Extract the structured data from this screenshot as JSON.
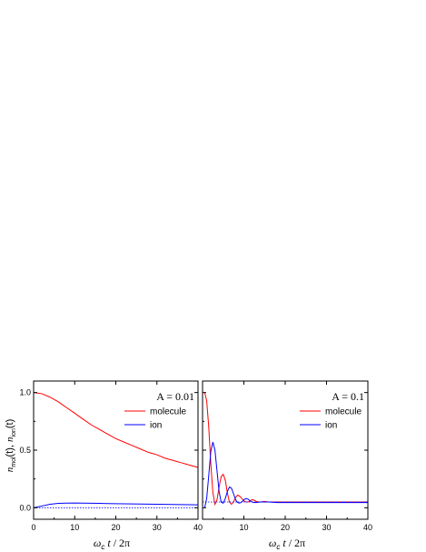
{
  "ylabel": {
    "n1": "n",
    "sub1": "mol",
    "mid": "(t), ",
    "n2": "n",
    "sub2": "ion",
    "end": "(t)"
  },
  "xlabel": {
    "omega": "ω",
    "sub": "c",
    "t": "t",
    "rest": " / 2π"
  },
  "chart_data": [
    {
      "type": "line",
      "annotation": "A = 0.01",
      "xlim": [
        0,
        40
      ],
      "ylim": [
        -0.1,
        1.1
      ],
      "x_ticks": [
        0,
        10,
        20,
        30,
        40
      ],
      "x_tick_labels": [
        "0",
        "10",
        "20",
        "30",
        "40"
      ],
      "y_ticks": [
        0.0,
        0.5,
        1.0
      ],
      "y_tick_labels": [
        "0.0",
        "0.5",
        "1.0"
      ],
      "legend_position": "top-right",
      "series": [
        {
          "name": "molecule",
          "color": "#ff0000",
          "x": [
            0,
            2,
            4,
            6,
            8,
            10,
            12,
            14,
            16,
            18,
            20,
            22,
            24,
            26,
            28,
            30,
            32,
            34,
            36,
            38,
            40
          ],
          "y": [
            1.0,
            0.99,
            0.96,
            0.92,
            0.87,
            0.82,
            0.77,
            0.72,
            0.68,
            0.64,
            0.6,
            0.57,
            0.54,
            0.51,
            0.48,
            0.46,
            0.43,
            0.41,
            0.39,
            0.37,
            0.35
          ]
        },
        {
          "name": "ion",
          "color": "#0000ff",
          "x": [
            0,
            2,
            4,
            6,
            8,
            10,
            12,
            14,
            16,
            18,
            20,
            22,
            24,
            26,
            28,
            30,
            32,
            34,
            36,
            38,
            40
          ],
          "y": [
            0.0,
            0.015,
            0.03,
            0.038,
            0.04,
            0.041,
            0.04,
            0.039,
            0.038,
            0.036,
            0.035,
            0.034,
            0.033,
            0.032,
            0.031,
            0.03,
            0.029,
            0.028,
            0.027,
            0.026,
            0.025
          ]
        },
        {
          "name": "",
          "color": "#0000ff",
          "style": "dotted",
          "x": [
            0,
            40
          ],
          "y": [
            0.0,
            0.0
          ]
        }
      ]
    },
    {
      "type": "line",
      "annotation": "A = 0.1",
      "xlim": [
        0,
        40
      ],
      "ylim": [
        -0.1,
        1.1
      ],
      "x_ticks": [
        0,
        10,
        20,
        30,
        40
      ],
      "x_tick_labels": [
        "",
        "10",
        "20",
        "30",
        "40"
      ],
      "y_ticks": [
        0.0,
        0.5,
        1.0
      ],
      "legend_position": "top-right",
      "series": [
        {
          "name": "molecule",
          "color": "#ff0000",
          "x": [
            0.5,
            1.0,
            1.5,
            2.0,
            2.5,
            3.0,
            3.5,
            4.0,
            4.5,
            5.0,
            5.5,
            6.0,
            6.5,
            7.0,
            7.5,
            8.0,
            8.5,
            9.0,
            9.5,
            10.0,
            10.5,
            11.0,
            11.5,
            12.0,
            12.5,
            13.0,
            13.5,
            14.0,
            15.0,
            16.0,
            18.0,
            20.0,
            25.0,
            30.0,
            35.0,
            40.0
          ],
          "y": [
            1.0,
            0.93,
            0.7,
            0.38,
            0.13,
            0.03,
            0.07,
            0.18,
            0.27,
            0.29,
            0.24,
            0.13,
            0.05,
            0.03,
            0.05,
            0.09,
            0.11,
            0.1,
            0.08,
            0.06,
            0.05,
            0.05,
            0.06,
            0.07,
            0.065,
            0.055,
            0.05,
            0.05,
            0.055,
            0.05,
            0.05,
            0.05,
            0.05,
            0.05,
            0.05,
            0.05
          ]
        },
        {
          "name": "ion",
          "color": "#0000ff",
          "x": [
            0.5,
            1.0,
            1.5,
            2.0,
            2.5,
            3.0,
            3.5,
            4.0,
            4.5,
            5.0,
            5.5,
            6.0,
            6.5,
            7.0,
            7.5,
            8.0,
            8.5,
            9.0,
            9.5,
            10.0,
            10.5,
            11.0,
            11.5,
            12.0,
            12.5,
            13.0,
            14.0,
            15.0,
            16.0,
            18.0,
            20.0,
            25.0,
            30.0,
            35.0,
            40.0
          ],
          "y": [
            0.0,
            0.08,
            0.28,
            0.49,
            0.57,
            0.5,
            0.32,
            0.14,
            0.05,
            0.04,
            0.08,
            0.14,
            0.18,
            0.17,
            0.12,
            0.07,
            0.045,
            0.04,
            0.05,
            0.07,
            0.08,
            0.075,
            0.06,
            0.05,
            0.045,
            0.045,
            0.05,
            0.05,
            0.05,
            0.045,
            0.045,
            0.045,
            0.045,
            0.045,
            0.045
          ]
        },
        {
          "name": "",
          "color": "#0000ff",
          "style": "dotted",
          "x": [
            0,
            40
          ],
          "y": [
            0.05,
            0.05
          ]
        }
      ]
    }
  ]
}
